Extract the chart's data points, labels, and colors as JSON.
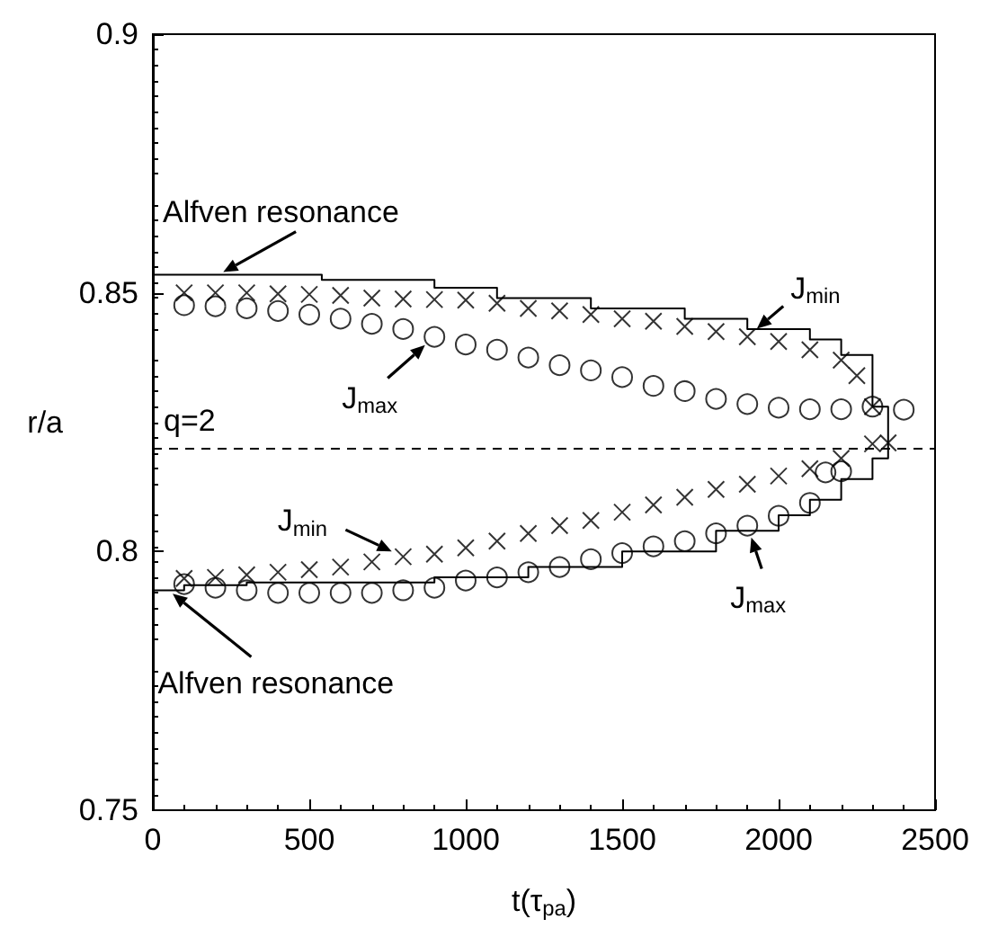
{
  "chart_data": {
    "type": "scatter",
    "xlabel": "t(τ$_{pa}$)",
    "ylabel": "r/a",
    "xlim": [
      0,
      2500
    ],
    "xticks": [
      0,
      500,
      1000,
      1500,
      2000,
      2500
    ],
    "ylim": [
      0.75,
      0.9
    ],
    "yticks": [
      0.75,
      0.8,
      0.85,
      0.9
    ],
    "grid": false,
    "series": [
      {
        "type": "step",
        "color": "#000000",
        "x": [
          0,
          540,
          900,
          1100,
          1400,
          1700,
          1900,
          2100,
          2200,
          2300,
          2350
        ],
        "values": [
          0.8535,
          0.8525,
          0.851,
          0.849,
          0.847,
          0.845,
          0.843,
          0.841,
          0.838,
          0.828,
          0.821
        ]
      },
      {
        "type": "step",
        "color": "#000000",
        "x": [
          0,
          100,
          300,
          600,
          900,
          1200,
          1500,
          1800,
          2000,
          2100,
          2200,
          2300,
          2350
        ],
        "values": [
          0.7925,
          0.7935,
          0.794,
          0.794,
          0.795,
          0.797,
          0.8,
          0.804,
          0.807,
          0.81,
          0.814,
          0.818,
          0.821
        ]
      },
      {
        "marker": "cross",
        "color": "#000000",
        "x": [
          100,
          200,
          300,
          400,
          500,
          600,
          700,
          800,
          900,
          1000,
          1100,
          1200,
          1300,
          1400,
          1500,
          1600,
          1700,
          1800,
          1900,
          2000,
          2100,
          2200,
          2250,
          2300,
          2350,
          100,
          200,
          300,
          400,
          500,
          600,
          700,
          800,
          900,
          1000,
          1100,
          1200,
          1300,
          1400,
          1500,
          1600,
          1700,
          1800,
          1900,
          2000,
          2100,
          2200,
          2300
        ],
        "values": [
          0.85,
          0.85,
          0.85,
          0.8498,
          0.8497,
          0.8495,
          0.849,
          0.8488,
          0.8487,
          0.8486,
          0.848,
          0.847,
          0.8465,
          0.8458,
          0.845,
          0.8445,
          0.8435,
          0.8425,
          0.8415,
          0.8406,
          0.839,
          0.837,
          0.834,
          0.828,
          0.821,
          0.7948,
          0.795,
          0.7955,
          0.796,
          0.7965,
          0.797,
          0.798,
          0.799,
          0.7995,
          0.8007,
          0.802,
          0.8035,
          0.805,
          0.806,
          0.8076,
          0.809,
          0.8105,
          0.812,
          0.813,
          0.8146,
          0.816,
          0.818,
          0.8208
        ]
      },
      {
        "marker": "circle",
        "color": "#000000",
        "x": [
          100,
          200,
          300,
          400,
          500,
          600,
          700,
          800,
          900,
          1000,
          1100,
          1200,
          1300,
          1400,
          1500,
          1600,
          1700,
          1800,
          1900,
          2000,
          2100,
          2200,
          2300,
          2400,
          100,
          200,
          300,
          400,
          500,
          600,
          700,
          800,
          900,
          1000,
          1100,
          1200,
          1300,
          1400,
          1500,
          1600,
          1700,
          1800,
          1900,
          2000,
          2100,
          2150,
          2200
        ],
        "values": [
          0.8476,
          0.8474,
          0.847,
          0.8465,
          0.8458,
          0.845,
          0.844,
          0.843,
          0.8415,
          0.84,
          0.839,
          0.8375,
          0.836,
          0.835,
          0.8337,
          0.832,
          0.831,
          0.8295,
          0.8285,
          0.8278,
          0.8275,
          0.8275,
          0.828,
          0.8274,
          0.7937,
          0.793,
          0.7925,
          0.792,
          0.792,
          0.792,
          0.792,
          0.7925,
          0.793,
          0.7944,
          0.795,
          0.796,
          0.797,
          0.7985,
          0.7997,
          0.801,
          0.802,
          0.8035,
          0.805,
          0.8069,
          0.8094,
          0.8153,
          0.8155
        ]
      }
    ],
    "ref_lines": [
      {
        "axis": "y",
        "value": 0.82,
        "line_style": "dashed",
        "color": "#000000"
      }
    ],
    "annotations": [
      {
        "text": "Alfven resonance",
        "x": 210,
        "y": 0.8535
      },
      {
        "text": "Alfven resonance",
        "x": 50,
        "y": 0.7925
      },
      {
        "text": "J$_{min}$",
        "x": 1900,
        "y": 0.8415
      },
      {
        "text": "J$_{max}$",
        "x": 900,
        "y": 0.8415
      },
      {
        "text": "J$_{min}$",
        "x": 800,
        "y": 0.799
      },
      {
        "text": "J$_{max}$",
        "x": 1900,
        "y": 0.805
      },
      "q=2"
    ]
  }
}
